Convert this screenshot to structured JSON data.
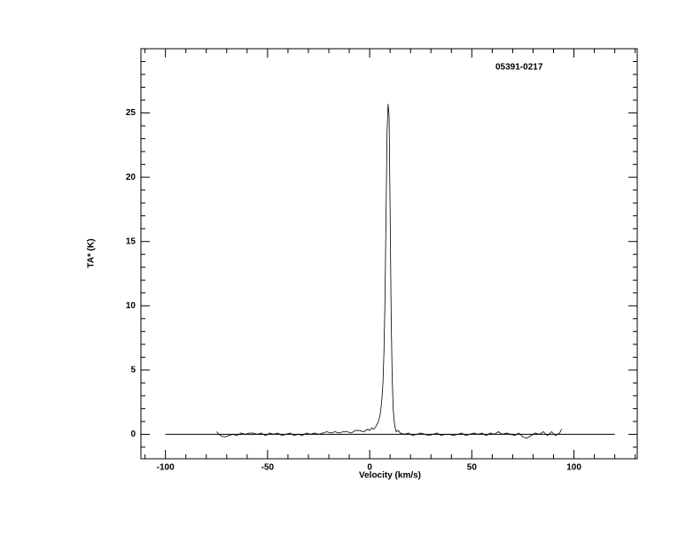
{
  "chart_data": {
    "type": "line",
    "annotation": "05391-0217",
    "xlabel": "Velocity (km/s)",
    "ylabel": "TA* (K)",
    "xlim": [
      -112,
      131
    ],
    "ylim": [
      -1.9,
      30
    ],
    "xticks": [
      -100,
      -50,
      0,
      50,
      100
    ],
    "yticks": [
      0,
      5,
      10,
      15,
      20,
      25
    ],
    "xminorticks": [
      -110,
      -90,
      -80,
      -70,
      -60,
      -40,
      -30,
      -20,
      -10,
      10,
      20,
      30,
      40,
      60,
      70,
      80,
      90,
      110,
      120,
      130
    ],
    "yminorticks": [
      -1,
      1,
      2,
      3,
      4,
      6,
      7,
      8,
      9,
      11,
      12,
      13,
      14,
      16,
      17,
      18,
      19,
      21,
      22,
      23,
      24,
      26,
      27,
      28,
      29
    ],
    "zero_line": [
      -100,
      120
    ],
    "series": [
      {
        "color": "#000000",
        "x": [
          -75,
          -73,
          -71,
          -69,
          -67,
          -65,
          -63,
          -61,
          -59,
          -57,
          -55,
          -53,
          -51,
          -49,
          -47,
          -45,
          -43,
          -41,
          -39,
          -37,
          -35,
          -33,
          -31,
          -29,
          -27,
          -25,
          -23,
          -21,
          -19,
          -17,
          -15,
          -13,
          -11,
          -9,
          -7,
          -5,
          -3,
          -1,
          0,
          1,
          2,
          3,
          4,
          5,
          5.5,
          6,
          6.5,
          7,
          7.5,
          8,
          8.5,
          9,
          9.5,
          10,
          10.5,
          11,
          11.5,
          12,
          12.5,
          13,
          14,
          15,
          17,
          19,
          21,
          23,
          25,
          27,
          29,
          31,
          33,
          35,
          37,
          39,
          41,
          43,
          45,
          47,
          49,
          51,
          53,
          55,
          57,
          59,
          61,
          63,
          65,
          67,
          69,
          71,
          73,
          75,
          77,
          79,
          81,
          83,
          85,
          87,
          89,
          91,
          93,
          94
        ],
        "values": [
          0.2,
          -0.1,
          -0.2,
          -0.1,
          0.0,
          -0.1,
          0.1,
          0.0,
          0.1,
          0.1,
          0.0,
          0.1,
          -0.1,
          0.1,
          0.0,
          0.1,
          -0.1,
          0.0,
          0.1,
          -0.1,
          0.0,
          -0.1,
          0.1,
          0.0,
          0.1,
          0.0,
          0.1,
          0.2,
          0.1,
          0.2,
          0.1,
          0.2,
          0.2,
          0.1,
          0.3,
          0.3,
          0.2,
          0.4,
          0.3,
          0.5,
          0.4,
          0.6,
          0.9,
          1.4,
          2.0,
          2.8,
          4.0,
          6.5,
          10.5,
          17.0,
          23.5,
          25.7,
          24.8,
          17.5,
          9.5,
          4.5,
          2.0,
          1.0,
          0.5,
          0.2,
          0.3,
          0.1,
          0.0,
          0.1,
          -0.1,
          0.0,
          0.1,
          0.0,
          -0.1,
          0.0,
          0.1,
          -0.1,
          0.0,
          0.0,
          -0.1,
          0.0,
          0.1,
          -0.1,
          0.0,
          0.1,
          0.0,
          0.1,
          -0.1,
          0.1,
          0.0,
          0.2,
          0.0,
          0.1,
          0.0,
          -0.1,
          0.1,
          -0.2,
          -0.3,
          -0.1,
          0.1,
          0.0,
          0.2,
          -0.1,
          0.2,
          -0.1,
          0.1,
          0.4
        ]
      }
    ]
  }
}
